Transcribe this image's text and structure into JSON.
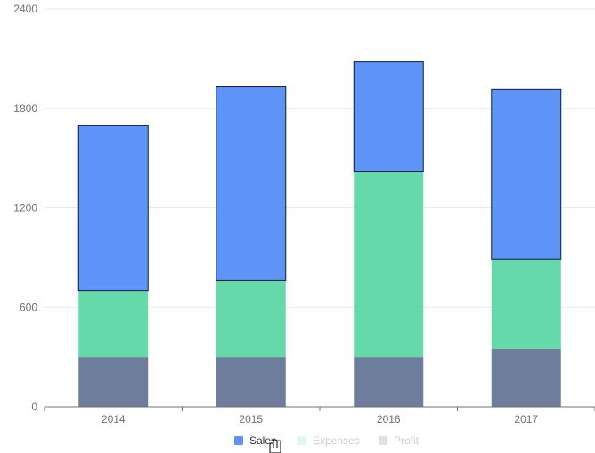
{
  "chart_data": {
    "type": "bar",
    "stacked": true,
    "categories": [
      "2014",
      "2015",
      "2016",
      "2017"
    ],
    "series": [
      {
        "name": "Profit",
        "values": [
          300,
          300,
          300,
          350
        ],
        "color": "#6e7d9c"
      },
      {
        "name": "Expenses",
        "values": [
          400,
          460,
          1120,
          540
        ],
        "color": "#66d9ab"
      },
      {
        "name": "Sales",
        "values": [
          995,
          1170,
          660,
          1025
        ],
        "color": "#5e93f8"
      }
    ],
    "ylim": [
      0,
      2400
    ],
    "yticks": [
      0,
      600,
      1200,
      1800,
      2400
    ],
    "grid": true,
    "legend": {
      "position": "bottom",
      "items": [
        {
          "label": "Sales",
          "color": "#5e93f8",
          "active": true
        },
        {
          "label": "Expenses",
          "color": "#e3f7ef",
          "active": false
        },
        {
          "label": "Profit",
          "color": "#e2e3e7",
          "active": false
        }
      ]
    },
    "highlighted_series": "Sales"
  },
  "cursor": {
    "icon": "hand-pointer-icon"
  }
}
